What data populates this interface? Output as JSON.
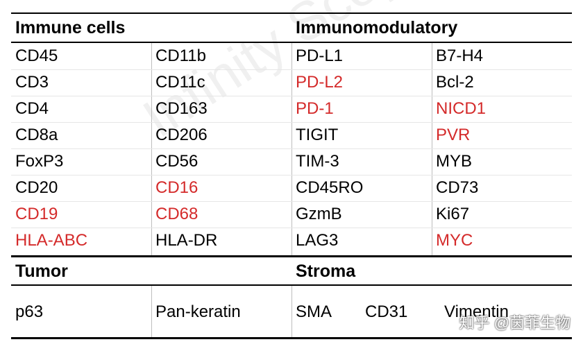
{
  "header_top": {
    "left": "Immune cells",
    "right": "Immunomodulatory"
  },
  "rows": [
    [
      {
        "text": "CD45",
        "red": false
      },
      {
        "text": "CD11b",
        "red": false
      },
      {
        "text": "PD-L1",
        "red": false
      },
      {
        "text": "B7-H4",
        "red": false
      }
    ],
    [
      {
        "text": "CD3",
        "red": false
      },
      {
        "text": "CD11c",
        "red": false
      },
      {
        "text": "PD-L2",
        "red": true
      },
      {
        "text": "Bcl-2",
        "red": false
      }
    ],
    [
      {
        "text": "CD4",
        "red": false
      },
      {
        "text": "CD163",
        "red": false
      },
      {
        "text": "PD-1",
        "red": true
      },
      {
        "text": "NICD1",
        "red": true
      }
    ],
    [
      {
        "text": "CD8a",
        "red": false
      },
      {
        "text": "CD206",
        "red": false
      },
      {
        "text": "TIGIT",
        "red": false
      },
      {
        "text": "PVR",
        "red": true
      }
    ],
    [
      {
        "text": "FoxP3",
        "red": false
      },
      {
        "text": "CD56",
        "red": false
      },
      {
        "text": "TIM-3",
        "red": false
      },
      {
        "text": "MYB",
        "red": false
      }
    ],
    [
      {
        "text": "CD20",
        "red": false
      },
      {
        "text": "CD16",
        "red": true
      },
      {
        "text": "CD45RO",
        "red": false
      },
      {
        "text": "CD73",
        "red": false
      }
    ],
    [
      {
        "text": "CD19",
        "red": true
      },
      {
        "text": "CD68",
        "red": true
      },
      {
        "text": "GzmB",
        "red": false
      },
      {
        "text": "Ki67",
        "red": false
      }
    ],
    [
      {
        "text": "HLA-ABC",
        "red": true
      },
      {
        "text": "HLA-DR",
        "red": false
      },
      {
        "text": "LAG3",
        "red": false
      },
      {
        "text": "MYC",
        "red": true
      }
    ]
  ],
  "header_bottom": {
    "left": "Tumor",
    "right": "Stroma"
  },
  "bottom_row": {
    "col1": "p63",
    "col2": "Pan-keratin",
    "stroma": [
      "SMA",
      "CD31",
      "Vimentin"
    ]
  },
  "watermark_text": "Infinity Scope",
  "corner_watermark": "知乎 @茵菲生物",
  "colors": {
    "highlight": "#d42a2a",
    "text": "#000000"
  }
}
